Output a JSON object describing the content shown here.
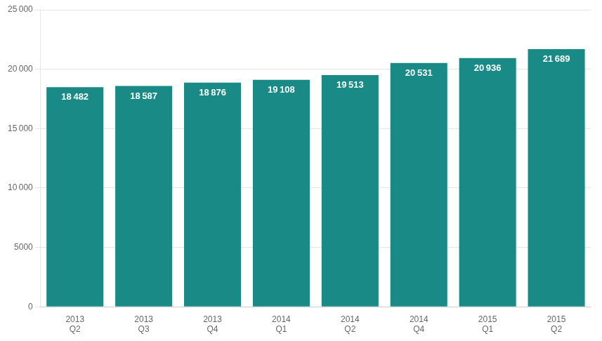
{
  "chart_data": {
    "type": "bar",
    "categories": [
      [
        "2013",
        "Q2"
      ],
      [
        "2013",
        "Q3"
      ],
      [
        "2013",
        "Q4"
      ],
      [
        "2014",
        "Q1"
      ],
      [
        "2014",
        "Q2"
      ],
      [
        "2014",
        "Q4"
      ],
      [
        "2015",
        "Q1"
      ],
      [
        "2015",
        "Q2"
      ]
    ],
    "values": [
      18482,
      18587,
      18876,
      19108,
      19513,
      20531,
      20936,
      21689
    ],
    "value_labels": [
      "18 482",
      "18 587",
      "18 876",
      "19 108",
      "19 513",
      "20 531",
      "20 936",
      "21 689"
    ],
    "data_labels": true,
    "color": "#1a8a87",
    "ylim": [
      0,
      25000
    ],
    "yticks": [
      0,
      5000,
      {
        "value": 10000,
        "label": "10 000"
      },
      {
        "value": 15000,
        "label": "15 000"
      },
      {
        "value": 20000,
        "label": "20 000"
      },
      {
        "value": 25000,
        "label": "25 000"
      }
    ],
    "grid": true
  }
}
